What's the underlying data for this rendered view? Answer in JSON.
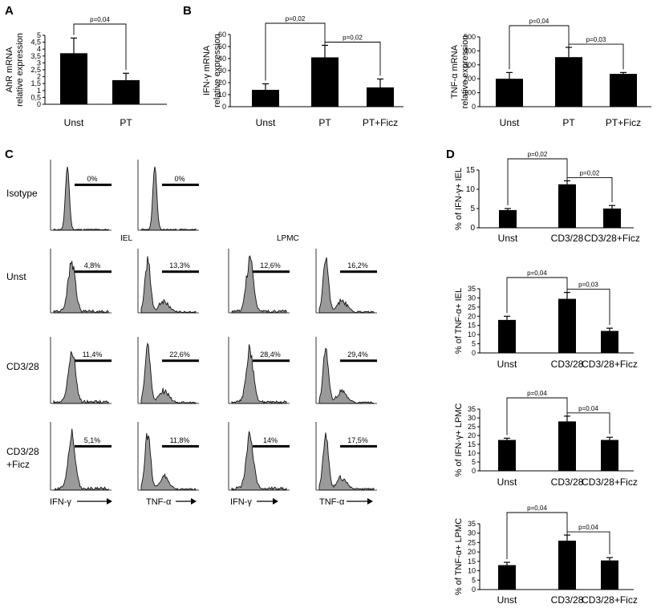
{
  "panel_labels": {
    "a": "A",
    "b": "B",
    "c": "C",
    "d": "D"
  },
  "flow": {
    "row_labels": {
      "isotype": "Isotype",
      "unst": "Unst",
      "cd328": "CD3/28",
      "ficz_1": "CD3/28",
      "ficz_2": "+Ficz"
    },
    "headers": {
      "iel": "IEL",
      "lpmc": "LPMC"
    },
    "isotype_pct": [
      "0%",
      "0%"
    ],
    "rows": [
      [
        "4,8%",
        "13,3%",
        "12,6%",
        "16,2%"
      ],
      [
        "11,4%",
        "22,6%",
        "28,4%",
        "29,4%"
      ],
      [
        "5,1%",
        "11,8%",
        "14%",
        "17,5%"
      ]
    ],
    "x_labels": [
      "IFN-γ",
      "TNF-α",
      "IFN-γ",
      "TNF-α"
    ]
  },
  "chart_data": [
    {
      "id": "A",
      "type": "bar",
      "categories": [
        "Unst",
        "PT"
      ],
      "values": [
        3.7,
        1.75
      ],
      "errors": [
        1.1,
        0.5
      ],
      "ylabel": "AhR mRNA relative expression",
      "ylabel_lines": [
        "AhR mRNA",
        "relative expression"
      ],
      "ylim": [
        0,
        5
      ],
      "yticks": [
        "0",
        "0,5",
        "1",
        "1,5",
        "2",
        "2,5",
        "3",
        "3,5",
        "4",
        "4,5",
        "5"
      ],
      "sig": [
        {
          "from": 0,
          "to": 1,
          "label": "p=0,04"
        }
      ]
    },
    {
      "id": "B1",
      "type": "bar",
      "categories": [
        "Unst",
        "PT",
        "PT+Ficz"
      ],
      "values": [
        14,
        41,
        16
      ],
      "errors": [
        5,
        10,
        7
      ],
      "ylabel": "IFN-γ mRNA relative expression",
      "ylabel_lines": [
        "IFN-γ mRNA",
        "relative expression"
      ],
      "ylim": [
        0,
        60
      ],
      "yticks": [
        "0",
        "10",
        "20",
        "30",
        "40",
        "50",
        "60"
      ],
      "sig": [
        {
          "from": 0,
          "to": 1,
          "label": "p=0,02"
        },
        {
          "from": 1,
          "to": 2,
          "label": "p=0,02"
        }
      ]
    },
    {
      "id": "B2",
      "type": "bar",
      "categories": [
        "Unst",
        "PT",
        "PT+Ficz"
      ],
      "values": [
        200,
        355,
        235
      ],
      "errors": [
        45,
        70,
        10
      ],
      "ylabel": "TNF-α mRNA relative expression",
      "ylabel_lines": [
        "TNF-α mRNA",
        "relative expression"
      ],
      "ylim": [
        0,
        500
      ],
      "yticks": [
        "0",
        "100",
        "200",
        "300",
        "400",
        "500"
      ],
      "sig": [
        {
          "from": 0,
          "to": 1,
          "label": "p=0,04"
        },
        {
          "from": 1,
          "to": 2,
          "label": "p=0,03"
        }
      ]
    },
    {
      "id": "D1",
      "type": "bar",
      "categories": [
        "Unst",
        "CD3/28",
        "CD3/28+Ficz"
      ],
      "values": [
        4.6,
        11.3,
        5
      ],
      "errors": [
        0.4,
        0.9,
        0.8
      ],
      "ylabel": "% of IFN-γ+ IEL",
      "ylabel_lines": [
        "% of IFN-γ+ IEL"
      ],
      "ylim": [
        0,
        15
      ],
      "yticks": [
        "0",
        "5",
        "10",
        "15"
      ],
      "sig": [
        {
          "from": 0,
          "to": 1,
          "label": "p=0,02"
        },
        {
          "from": 1,
          "to": 2,
          "label": "p=0,02"
        }
      ]
    },
    {
      "id": "D2",
      "type": "bar",
      "categories": [
        "Unst",
        "CD3/28",
        "CD3/28+Ficz"
      ],
      "values": [
        18,
        29.5,
        12
      ],
      "errors": [
        2,
        3.5,
        1.5
      ],
      "ylabel": "% of TNF-α+ IEL",
      "ylabel_lines": [
        "% of TNF-α+ IEL"
      ],
      "ylim": [
        0,
        35
      ],
      "yticks": [
        "0",
        "5",
        "10",
        "15",
        "20",
        "25",
        "30",
        "35"
      ],
      "sig": [
        {
          "from": 0,
          "to": 1,
          "label": "p=0,04"
        },
        {
          "from": 1,
          "to": 2,
          "label": "p=0,03"
        }
      ]
    },
    {
      "id": "D3",
      "type": "bar",
      "categories": [
        "Unst",
        "CD3/28",
        "CD3/28+Ficz"
      ],
      "values": [
        17.5,
        28,
        17.5
      ],
      "errors": [
        1,
        3,
        1.5
      ],
      "ylabel": "% of IFN-γ+ LPMC",
      "ylabel_lines": [
        "% of IFN-γ+ LPMC"
      ],
      "ylim": [
        0,
        35
      ],
      "yticks": [
        "0",
        "5",
        "10",
        "15",
        "20",
        "25",
        "30",
        "35"
      ],
      "sig": [
        {
          "from": 0,
          "to": 1,
          "label": "p=0,04"
        },
        {
          "from": 1,
          "to": 2,
          "label": "p=0,04"
        }
      ]
    },
    {
      "id": "D4",
      "type": "bar",
      "categories": [
        "Unst",
        "CD3/28",
        "CD3/28+Ficz"
      ],
      "values": [
        13,
        26,
        15.5
      ],
      "errors": [
        1.5,
        3,
        1.5
      ],
      "ylabel": "% of TNF-α+ LPMC",
      "ylabel_lines": [
        "% of TNF-α+ LPMC"
      ],
      "ylim": [
        0,
        35
      ],
      "yticks": [
        "0",
        "5",
        "10",
        "15",
        "20",
        "25",
        "30",
        "35"
      ],
      "sig": [
        {
          "from": 0,
          "to": 1,
          "label": "p=0,04"
        },
        {
          "from": 1,
          "to": 2,
          "label": "p=0,04"
        }
      ]
    }
  ]
}
